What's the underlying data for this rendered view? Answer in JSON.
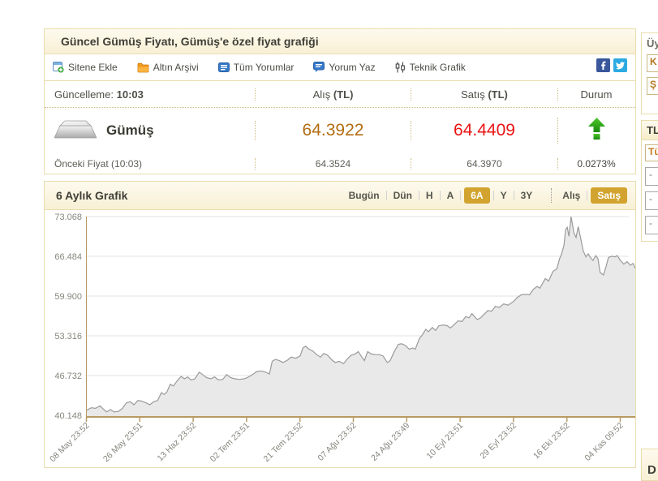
{
  "panel_info": {
    "title": "Güncel Gümüş Fiyatı, Gümüş'e özel fiyat grafiği",
    "toolbar": {
      "items": [
        {
          "label": "Sitene Ekle",
          "icon": "add-to-site-icon"
        },
        {
          "label": "Altın Arşivi",
          "icon": "archive-folder-icon"
        },
        {
          "label": "Tüm Yorumlar",
          "icon": "comments-icon"
        },
        {
          "label": "Yorum Yaz",
          "icon": "write-comment-icon"
        },
        {
          "label": "Teknik Grafik",
          "icon": "candlestick-chart-icon"
        }
      ],
      "social": [
        {
          "name": "Facebook"
        },
        {
          "name": "Twitter"
        }
      ]
    },
    "table": {
      "update_label": "Güncelleme:",
      "update_time": "10:03",
      "columns": {
        "buy_name": "Alış",
        "buy_unit": "(TL)",
        "sell_name": "Satış",
        "sell_unit": "(TL)",
        "status": "Durum"
      },
      "instrument": {
        "name": "Gümüş",
        "buy": "64.3922",
        "sell": "64.4409",
        "direction": "up",
        "change_percent": "0.0273%"
      },
      "previous": {
        "label": "Önceki Fiyat (10:03)",
        "buy": "64.3524",
        "sell": "64.3970"
      }
    }
  },
  "chart_panel": {
    "title": "6 Aylık Grafik",
    "range_tabs": [
      {
        "label": "Bugün",
        "active": false
      },
      {
        "label": "Dün",
        "active": false
      },
      {
        "label": "H",
        "active": false
      },
      {
        "label": "A",
        "active": false
      },
      {
        "label": "6A",
        "active": true
      },
      {
        "label": "Y",
        "active": false
      },
      {
        "label": "3Y",
        "active": false
      }
    ],
    "type_tabs": [
      {
        "label": "Alış",
        "active": false
      },
      {
        "label": "Satış",
        "active": true
      }
    ]
  },
  "chart_data": {
    "type": "area",
    "title": "6 Aylık Grafik",
    "series_name": "Satış (TL)",
    "ylim": [
      40.148,
      73.068
    ],
    "y_ticks": [
      73.068,
      66.484,
      59.9,
      53.316,
      46.732,
      40.148
    ],
    "x_tick_labels": [
      "08 May 23:52",
      "26 May 23:51",
      "13 Haz 23:52",
      "02 Tem 23:51",
      "21 Tem 23:52",
      "07 Ağu 23:52",
      "24 Ağu 23:49",
      "10 Eyl 23:51",
      "29 Eyl 23:52",
      "16 Eki 23:52",
      "04 Kas 09:52"
    ],
    "grid": true,
    "legend_position": "none",
    "points": [
      [
        0.0,
        41.0
      ],
      [
        0.008,
        41.4
      ],
      [
        0.016,
        41.3
      ],
      [
        0.024,
        41.7
      ],
      [
        0.03,
        41.2
      ],
      [
        0.036,
        40.7
      ],
      [
        0.043,
        41.1
      ],
      [
        0.05,
        40.7
      ],
      [
        0.058,
        40.8
      ],
      [
        0.065,
        41.3
      ],
      [
        0.072,
        42.2
      ],
      [
        0.079,
        42.4
      ],
      [
        0.086,
        41.9
      ],
      [
        0.093,
        42.6
      ],
      [
        0.1,
        42.5
      ],
      [
        0.108,
        42.2
      ],
      [
        0.115,
        41.9
      ],
      [
        0.122,
        42.4
      ],
      [
        0.129,
        42.6
      ],
      [
        0.136,
        43.9
      ],
      [
        0.141,
        43.6
      ],
      [
        0.146,
        44.0
      ],
      [
        0.152,
        45.3
      ],
      [
        0.158,
        45.0
      ],
      [
        0.165,
        45.9
      ],
      [
        0.172,
        46.6
      ],
      [
        0.178,
        46.2
      ],
      [
        0.184,
        46.5
      ],
      [
        0.19,
        46.0
      ],
      [
        0.197,
        46.2
      ],
      [
        0.205,
        47.3
      ],
      [
        0.211,
        46.9
      ],
      [
        0.218,
        46.4
      ],
      [
        0.226,
        46.2
      ],
      [
        0.233,
        46.5
      ],
      [
        0.24,
        46.0
      ],
      [
        0.248,
        46.1
      ],
      [
        0.255,
        46.9
      ],
      [
        0.262,
        46.4
      ],
      [
        0.27,
        46.2
      ],
      [
        0.278,
        46.1
      ],
      [
        0.287,
        46.2
      ],
      [
        0.295,
        46.5
      ],
      [
        0.302,
        46.9
      ],
      [
        0.31,
        47.4
      ],
      [
        0.318,
        47.5
      ],
      [
        0.326,
        47.3
      ],
      [
        0.333,
        47.0
      ],
      [
        0.338,
        49.1
      ],
      [
        0.344,
        49.4
      ],
      [
        0.351,
        49.2
      ],
      [
        0.358,
        48.9
      ],
      [
        0.366,
        49.3
      ],
      [
        0.373,
        49.8
      ],
      [
        0.381,
        49.6
      ],
      [
        0.389,
        50.0
      ],
      [
        0.394,
        51.3
      ],
      [
        0.399,
        51.6
      ],
      [
        0.405,
        51.1
      ],
      [
        0.412,
        50.8
      ],
      [
        0.419,
        50.2
      ],
      [
        0.426,
        49.8
      ],
      [
        0.432,
        50.4
      ],
      [
        0.439,
        50.1
      ],
      [
        0.447,
        49.3
      ],
      [
        0.453,
        48.9
      ],
      [
        0.46,
        49.1
      ],
      [
        0.468,
        48.7
      ],
      [
        0.475,
        49.5
      ],
      [
        0.482,
        50.1
      ],
      [
        0.489,
        50.3
      ],
      [
        0.495,
        50.7
      ],
      [
        0.5,
        50.0
      ],
      [
        0.506,
        49.2
      ],
      [
        0.512,
        50.7
      ],
      [
        0.519,
        50.3
      ],
      [
        0.526,
        50.2
      ],
      [
        0.533,
        50.2
      ],
      [
        0.54,
        50.0
      ],
      [
        0.548,
        48.9
      ],
      [
        0.553,
        49.2
      ],
      [
        0.56,
        50.6
      ],
      [
        0.568,
        51.9
      ],
      [
        0.574,
        52.0
      ],
      [
        0.581,
        51.7
      ],
      [
        0.588,
        51.1
      ],
      [
        0.594,
        51.3
      ],
      [
        0.599,
        51.1
      ],
      [
        0.606,
        52.8
      ],
      [
        0.612,
        53.5
      ],
      [
        0.618,
        54.4
      ],
      [
        0.623,
        54.0
      ],
      [
        0.63,
        54.7
      ],
      [
        0.636,
        54.2
      ],
      [
        0.642,
        55.0
      ],
      [
        0.65,
        55.1
      ],
      [
        0.657,
        55.0
      ],
      [
        0.663,
        54.6
      ],
      [
        0.669,
        55.1
      ],
      [
        0.677,
        55.8
      ],
      [
        0.684,
        55.7
      ],
      [
        0.691,
        56.5
      ],
      [
        0.697,
        56.3
      ],
      [
        0.702,
        57.0
      ],
      [
        0.712,
        56.0
      ],
      [
        0.718,
        56.3
      ],
      [
        0.731,
        57.5
      ],
      [
        0.738,
        57.4
      ],
      [
        0.745,
        58.2
      ],
      [
        0.752,
        58.0
      ],
      [
        0.76,
        58.6
      ],
      [
        0.768,
        58.4
      ],
      [
        0.778,
        59.0
      ],
      [
        0.784,
        59.6
      ],
      [
        0.792,
        60.1
      ],
      [
        0.8,
        60.2
      ],
      [
        0.807,
        60.1
      ],
      [
        0.814,
        61.0
      ],
      [
        0.821,
        61.5
      ],
      [
        0.826,
        61.2
      ],
      [
        0.836,
        62.8
      ],
      [
        0.842,
        62.4
      ],
      [
        0.85,
        64.0
      ],
      [
        0.857,
        64.4
      ],
      [
        0.862,
        66.1
      ],
      [
        0.865,
        66.7
      ],
      [
        0.87,
        68.3
      ],
      [
        0.873,
        70.9
      ],
      [
        0.876,
        71.3
      ],
      [
        0.879,
        69.8
      ],
      [
        0.883,
        73.05
      ],
      [
        0.888,
        70.4
      ],
      [
        0.892,
        69.6
      ],
      [
        0.896,
        71.4
      ],
      [
        0.901,
        69.2
      ],
      [
        0.905,
        67.4
      ],
      [
        0.91,
        66.4
      ],
      [
        0.914,
        66.9
      ],
      [
        0.919,
        66.2
      ],
      [
        0.923,
        65.8
      ],
      [
        0.928,
        66.6
      ],
      [
        0.932,
        66.1
      ],
      [
        0.936,
        63.8
      ],
      [
        0.942,
        63.4
      ],
      [
        0.947,
        64.9
      ],
      [
        0.951,
        66.3
      ],
      [
        0.957,
        66.5
      ],
      [
        0.963,
        66.4
      ],
      [
        0.967,
        66.6
      ],
      [
        0.973,
        65.8
      ],
      [
        0.979,
        65.2
      ],
      [
        0.985,
        65.6
      ],
      [
        0.991,
        65.0
      ],
      [
        0.996,
        65.3
      ],
      [
        1.0,
        64.5
      ]
    ],
    "colors": {
      "line": "#9a9a9a",
      "fill": "#e7e7e7",
      "axis": "#b89a62",
      "grid": "#e3e3e3",
      "label": "#86867e"
    }
  },
  "sidebar": {
    "login_box": {
      "title_fragment": "Üy",
      "field1_fragment": "K",
      "field2_fragment": "Ş"
    },
    "list_box": {
      "title_fragment": "TL",
      "row1_fragment": "Tü",
      "row_fragments": [
        "-",
        "-",
        "-"
      ]
    },
    "bottom_box": {
      "title_fragment": "D"
    }
  }
}
